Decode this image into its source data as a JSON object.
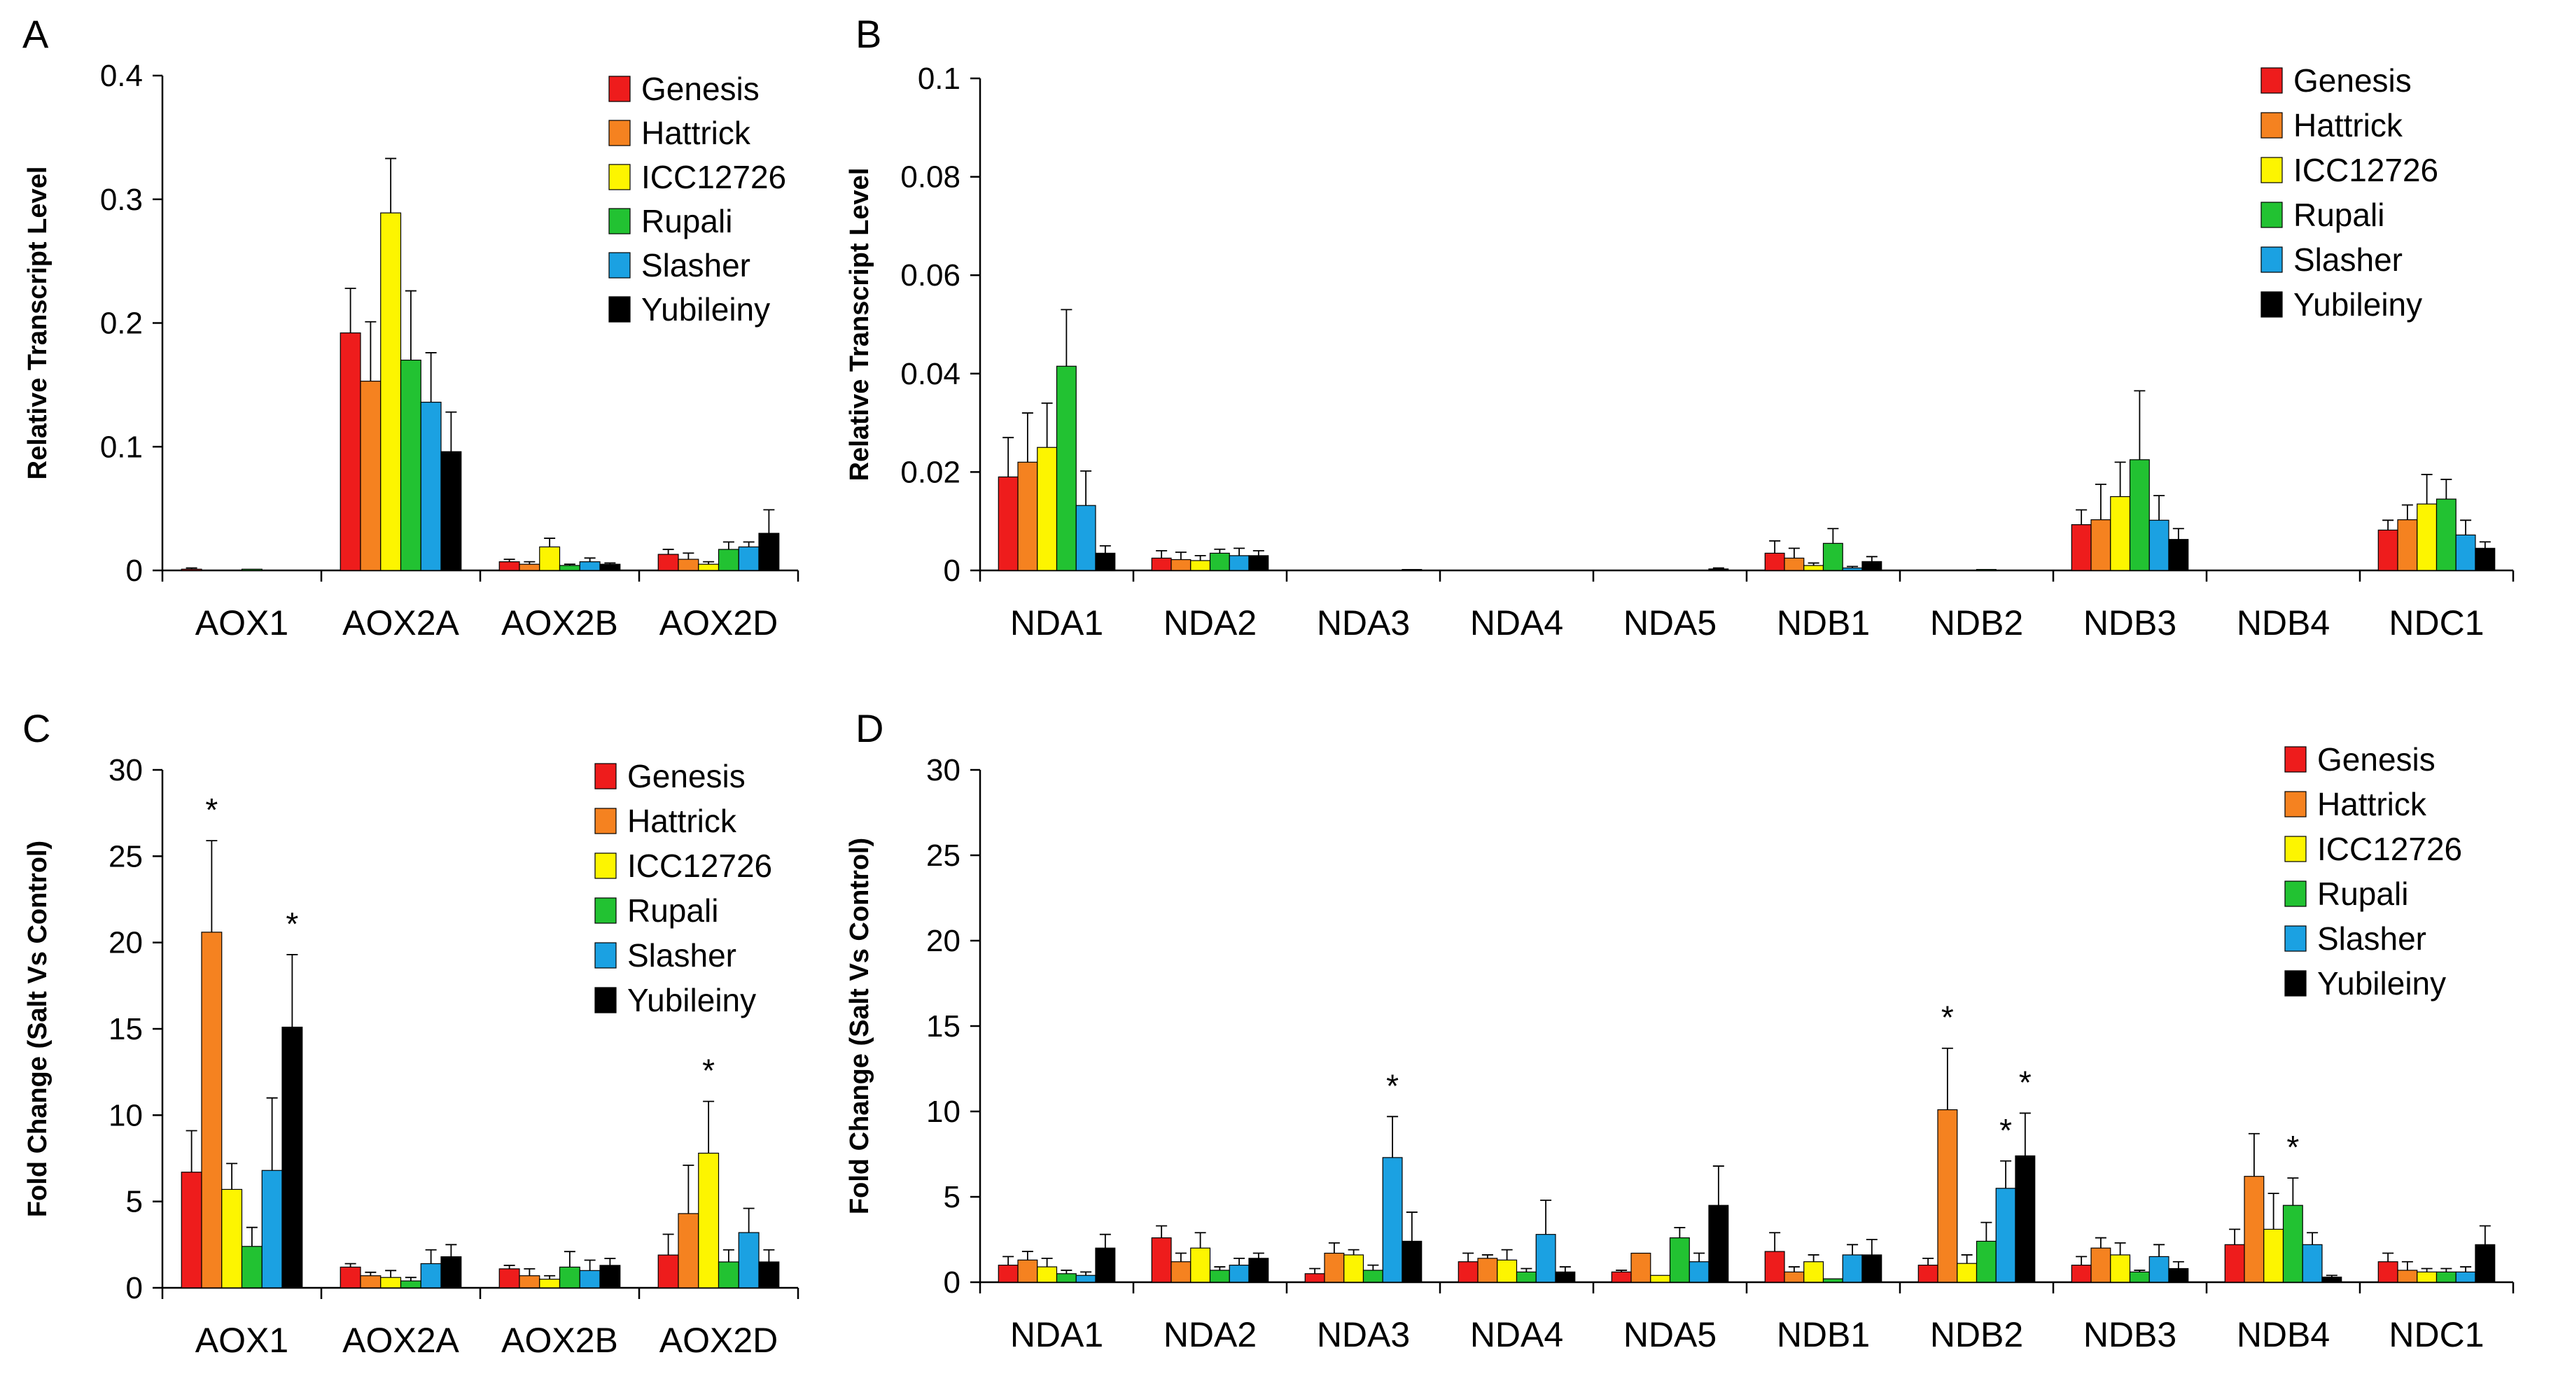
{
  "colors": {
    "Genesis": "#ee1c1c",
    "Hattrick": "#f58220",
    "ICC12726": "#fdf500",
    "Rupali": "#22c232",
    "Slasher": "#1ba1e2",
    "Yubileiny": "#000000"
  },
  "chart_data": [
    {
      "panel": "A",
      "type": "bar",
      "ylabel": "Relative Transcript Level",
      "ylim": [
        0,
        0.4
      ],
      "yticks": [
        "0",
        "0.1",
        "0.2",
        "0.3",
        "0.4"
      ],
      "categories": [
        "AOX1",
        "AOX2A",
        "AOX2B",
        "AOX2D"
      ],
      "legend": [
        "Genesis",
        "Hattrick",
        "ICC12726",
        "Rupali",
        "Slasher",
        "Yubileiny"
      ],
      "series": [
        {
          "name": "Genesis",
          "values": [
            0.001,
            0.192,
            0.007,
            0.013
          ],
          "errors": [
            0.001,
            0.036,
            0.002,
            0.004
          ]
        },
        {
          "name": "Hattrick",
          "values": [
            0.0,
            0.153,
            0.005,
            0.009
          ],
          "errors": [
            0.0,
            0.048,
            0.002,
            0.005
          ]
        },
        {
          "name": "ICC12726",
          "values": [
            0.0,
            0.289,
            0.019,
            0.005
          ],
          "errors": [
            0.0,
            0.044,
            0.007,
            0.002
          ]
        },
        {
          "name": "Rupali",
          "values": [
            0.001,
            0.17,
            0.004,
            0.017
          ],
          "errors": [
            0.0,
            0.056,
            0.001,
            0.006
          ]
        },
        {
          "name": "Slasher",
          "values": [
            0.0,
            0.136,
            0.007,
            0.019
          ],
          "errors": [
            0.0,
            0.04,
            0.003,
            0.004
          ]
        },
        {
          "name": "Yubileiny",
          "values": [
            0.0,
            0.096,
            0.005,
            0.03
          ],
          "errors": [
            0.0,
            0.032,
            0.001,
            0.019
          ]
        }
      ],
      "stars": []
    },
    {
      "panel": "B",
      "type": "bar",
      "ylabel": "Relative Transcript Level",
      "ylim": [
        0,
        0.1
      ],
      "yticks": [
        "0",
        "0.02",
        "0.04",
        "0.06",
        "0.08",
        "0.1"
      ],
      "categories": [
        "NDA1",
        "NDA2",
        "NDA3",
        "NDA4",
        "NDA5",
        "NDB1",
        "NDB2",
        "NDB3",
        "NDB4",
        "NDC1"
      ],
      "legend": [
        "Genesis",
        "Hattrick",
        "ICC12726",
        "Rupali",
        "Slasher",
        "Yubileiny"
      ],
      "series": [
        {
          "name": "Genesis",
          "values": [
            0.019,
            0.0025,
            0,
            0,
            0,
            0.0035,
            0,
            0.0093,
            0,
            0.0082
          ],
          "errors": [
            0.008,
            0.0015,
            0,
            0,
            0,
            0.0025,
            0,
            0.003,
            0,
            0.002
          ]
        },
        {
          "name": "Hattrick",
          "values": [
            0.022,
            0.0022,
            0,
            0,
            0,
            0.0025,
            0,
            0.0103,
            0,
            0.0103
          ],
          "errors": [
            0.01,
            0.0015,
            0,
            0,
            0,
            0.002,
            0,
            0.0072,
            0,
            0.003
          ]
        },
        {
          "name": "ICC12726",
          "values": [
            0.025,
            0.002,
            0,
            0,
            0,
            0.001,
            0,
            0.015,
            0,
            0.0135
          ],
          "errors": [
            0.009,
            0.001,
            0,
            0,
            0,
            0.0005,
            0,
            0.007,
            0,
            0.006
          ]
        },
        {
          "name": "Rupali",
          "values": [
            0.0415,
            0.0035,
            0,
            0,
            0,
            0.0055,
            0.0002,
            0.0225,
            0,
            0.0145
          ],
          "errors": [
            0.0115,
            0.0008,
            0,
            0,
            0,
            0.003,
            0,
            0.014,
            0,
            0.004
          ]
        },
        {
          "name": "Slasher",
          "values": [
            0.0132,
            0.003,
            0,
            0,
            0,
            0.0005,
            0,
            0.0102,
            0,
            0.0072
          ],
          "errors": [
            0.007,
            0.0015,
            0,
            0,
            0,
            0.0003,
            0,
            0.005,
            0,
            0.003
          ]
        },
        {
          "name": "Yubileiny",
          "values": [
            0.0035,
            0.003,
            0.0002,
            0,
            0.0003,
            0.0018,
            0,
            0.0063,
            0,
            0.0045
          ],
          "errors": [
            0.0015,
            0.001,
            0,
            0,
            0.0002,
            0.001,
            0,
            0.0022,
            0,
            0.0013
          ]
        }
      ],
      "stars": []
    },
    {
      "panel": "C",
      "type": "bar",
      "ylabel": "Fold Change (Salt Vs Control)",
      "ylim": [
        0,
        30
      ],
      "yticks": [
        "0",
        "5",
        "10",
        "15",
        "20",
        "25",
        "30"
      ],
      "categories": [
        "AOX1",
        "AOX2A",
        "AOX2B",
        "AOX2D"
      ],
      "legend": [
        "Genesis",
        "Hattrick",
        "ICC12726",
        "Rupali",
        "Slasher",
        "Yubileiny"
      ],
      "series": [
        {
          "name": "Genesis",
          "values": [
            6.7,
            1.2,
            1.1,
            1.9
          ],
          "errors": [
            2.4,
            0.2,
            0.2,
            1.2
          ]
        },
        {
          "name": "Hattrick",
          "values": [
            20.6,
            0.7,
            0.7,
            4.3
          ],
          "errors": [
            5.3,
            0.2,
            0.4,
            2.8
          ]
        },
        {
          "name": "ICC12726",
          "values": [
            5.7,
            0.6,
            0.5,
            7.8
          ],
          "errors": [
            1.5,
            0.4,
            0.2,
            3.0
          ]
        },
        {
          "name": "Rupali",
          "values": [
            2.4,
            0.4,
            1.2,
            1.5
          ],
          "errors": [
            1.1,
            0.2,
            0.9,
            0.7
          ]
        },
        {
          "name": "Slasher",
          "values": [
            6.8,
            1.4,
            1.0,
            3.2
          ],
          "errors": [
            4.2,
            0.8,
            0.6,
            1.4
          ]
        },
        {
          "name": "Yubileiny",
          "values": [
            15.1,
            1.8,
            1.3,
            1.5
          ],
          "errors": [
            4.2,
            0.7,
            0.4,
            0.7
          ]
        }
      ],
      "stars": [
        {
          "category": "AOX1",
          "series": "Hattrick",
          "label": "*"
        },
        {
          "category": "AOX1",
          "series": "Yubileiny",
          "label": "*"
        },
        {
          "category": "AOX2D",
          "series": "ICC12726",
          "label": "*"
        }
      ]
    },
    {
      "panel": "D",
      "type": "bar",
      "ylabel": "Fold Change (Salt Vs Control)",
      "ylim": [
        0,
        30
      ],
      "yticks": [
        "0",
        "5",
        "10",
        "15",
        "20",
        "25",
        "30"
      ],
      "categories": [
        "NDA1",
        "NDA2",
        "NDA3",
        "NDA4",
        "NDA5",
        "NDB1",
        "NDB2",
        "NDB3",
        "NDB4",
        "NDC1"
      ],
      "legend": [
        "Genesis",
        "Hattrick",
        "ICC12726",
        "Rupali",
        "Slasher",
        "Yubileiny"
      ],
      "series": [
        {
          "name": "Genesis",
          "values": [
            1.0,
            2.6,
            0.5,
            1.2,
            0.6,
            1.8,
            1.0,
            1.0,
            2.2,
            1.2
          ],
          "errors": [
            0.5,
            0.7,
            0.3,
            0.5,
            0.1,
            1.1,
            0.4,
            0.5,
            0.9,
            0.5
          ]
        },
        {
          "name": "Hattrick",
          "values": [
            1.3,
            1.2,
            1.7,
            1.4,
            1.7,
            0.6,
            10.1,
            2.0,
            6.2,
            0.7
          ],
          "errors": [
            0.5,
            0.5,
            0.6,
            0.2,
            0.0,
            0.3,
            3.6,
            0.6,
            2.5,
            0.5
          ]
        },
        {
          "name": "ICC12726",
          "values": [
            0.9,
            2.0,
            1.6,
            1.3,
            0.4,
            1.2,
            1.1,
            1.6,
            3.1,
            0.6
          ],
          "errors": [
            0.5,
            0.9,
            0.3,
            0.6,
            0.0,
            0.4,
            0.5,
            0.7,
            2.1,
            0.2
          ]
        },
        {
          "name": "Rupali",
          "values": [
            0.5,
            0.7,
            0.7,
            0.6,
            2.6,
            0.2,
            2.4,
            0.6,
            4.5,
            0.6
          ],
          "errors": [
            0.2,
            0.2,
            0.3,
            0.2,
            0.6,
            0.0,
            1.1,
            0.1,
            1.6,
            0.2
          ]
        },
        {
          "name": "Slasher",
          "values": [
            0.4,
            1.0,
            7.3,
            2.8,
            1.2,
            1.6,
            5.5,
            1.5,
            2.2,
            0.6
          ],
          "errors": [
            0.2,
            0.4,
            2.4,
            2.0,
            0.5,
            0.6,
            1.6,
            0.7,
            0.7,
            0.3
          ]
        },
        {
          "name": "Yubileiny",
          "values": [
            2.0,
            1.4,
            2.4,
            0.6,
            4.5,
            1.6,
            7.4,
            0.8,
            0.3,
            2.2
          ],
          "errors": [
            0.8,
            0.3,
            1.7,
            0.3,
            2.3,
            0.9,
            2.5,
            0.4,
            0.1,
            1.1
          ]
        }
      ],
      "stars": [
        {
          "category": "NDA3",
          "series": "Slasher",
          "label": "*"
        },
        {
          "category": "NDB2",
          "series": "Hattrick",
          "label": "*"
        },
        {
          "category": "NDB2",
          "series": "Slasher",
          "label": "*"
        },
        {
          "category": "NDB2",
          "series": "Yubileiny",
          "label": "*"
        },
        {
          "category": "NDB4",
          "series": "Rupali",
          "label": "*"
        }
      ]
    }
  ]
}
